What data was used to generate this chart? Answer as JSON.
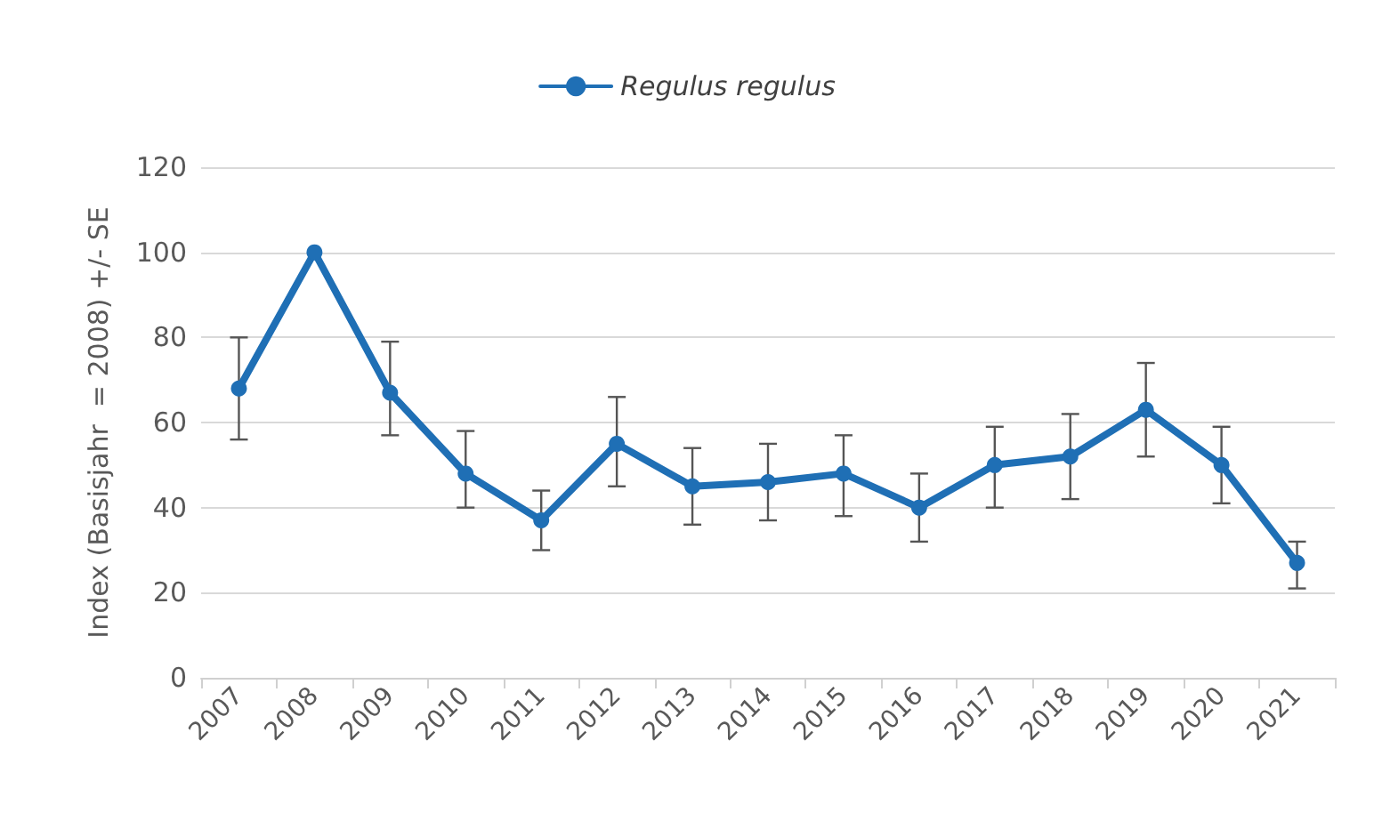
{
  "chart_data": {
    "type": "line",
    "ylabel": "Index (Basisjahr  = 2008) +/- SE",
    "categories": [
      "2007",
      "2008",
      "2009",
      "2010",
      "2011",
      "2012",
      "2013",
      "2014",
      "2015",
      "2016",
      "2017",
      "2018",
      "2019",
      "2020",
      "2021"
    ],
    "series": [
      {
        "name": "Regulus regulus",
        "color": "#1f6fb5",
        "values": [
          68,
          100,
          67,
          48,
          37,
          55,
          45,
          46,
          48,
          40,
          50,
          52,
          63,
          50,
          27
        ],
        "errors": [
          [
            56,
            80
          ],
          null,
          [
            57,
            79
          ],
          [
            40,
            58
          ],
          [
            30,
            44
          ],
          [
            45,
            66
          ],
          [
            36,
            54
          ],
          [
            37,
            55
          ],
          [
            38,
            57
          ],
          [
            32,
            48
          ],
          [
            40,
            59
          ],
          [
            42,
            62
          ],
          [
            52,
            74
          ],
          [
            41,
            59
          ],
          [
            21,
            32
          ]
        ]
      }
    ],
    "ylim": [
      0,
      120
    ],
    "yticks": [
      0,
      20,
      40,
      60,
      80,
      100,
      120
    ],
    "grid": "y",
    "legend": "top",
    "marker": "circle",
    "line_style": "solid"
  }
}
